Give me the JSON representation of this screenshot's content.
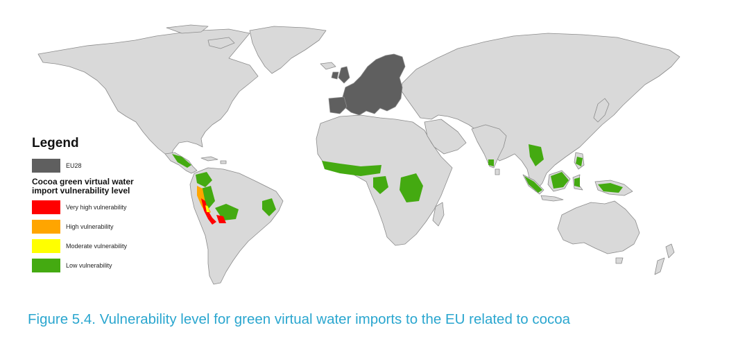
{
  "legend": {
    "title": "Legend",
    "eu_label": "EU28",
    "subtitle": "Cocoa green virtual water import vulnerability level",
    "items": [
      {
        "label": "Very high vulnerability",
        "color": "#ff0000"
      },
      {
        "label": "High vulnerability",
        "color": "#ffa500"
      },
      {
        "label": "Moderate vulnerability",
        "color": "#ffff00"
      },
      {
        "label": "Low vulnerability",
        "color": "#44aa11"
      }
    ]
  },
  "colors": {
    "land": "#d9d9d9",
    "border": "#8a8a8a",
    "eu": "#5f5f5f",
    "very_high": "#ff0000",
    "high": "#ffa500",
    "moderate": "#ffff00",
    "low": "#44aa11",
    "caption": "#2aa6cf"
  },
  "caption": "Figure 5.4. Vulnerability level for green virtual water imports to the EU related to cocoa"
}
